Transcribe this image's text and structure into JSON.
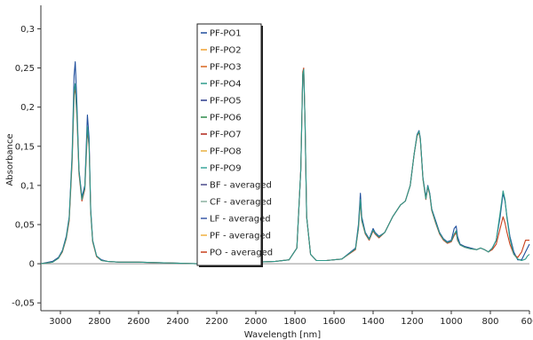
{
  "chart_data": {
    "type": "line",
    "xlabel": "Wavelength [nm]",
    "ylabel": "Absorbance",
    "xlim": [
      3100,
      600
    ],
    "ylim": [
      -0.06,
      0.33
    ],
    "x_ticks": [
      3000,
      2800,
      2600,
      2400,
      2200,
      2000,
      1800,
      1600,
      1400,
      1200,
      1000,
      800,
      600
    ],
    "x_tick_labels": [
      "3000",
      "2800",
      "2600",
      "2400",
      "2200",
      "2000",
      "1800",
      "1600",
      "1400",
      "1200",
      "1000",
      "800",
      "600"
    ],
    "y_ticks": [
      -0.05,
      0,
      0.05,
      0.1,
      0.15,
      0.2,
      0.25,
      0.3
    ],
    "y_tick_labels": [
      "-0,05",
      "0",
      "0,05",
      "0,1",
      "0,15",
      "0,2",
      "0,25",
      "0,3"
    ],
    "grid": false,
    "legend_placement": "top-center",
    "series": [
      {
        "name": "PF-PO1",
        "color": "#1f4e9c",
        "highlight": true
      },
      {
        "name": "PF-PO2",
        "color": "#f0a030"
      },
      {
        "name": "PF-PO3",
        "color": "#d9641e"
      },
      {
        "name": "PF-PO4",
        "color": "#2e9a8a"
      },
      {
        "name": "PF-PO5",
        "color": "#2a3a8c"
      },
      {
        "name": "PF-PO6",
        "color": "#2e8a4a"
      },
      {
        "name": "PF-PO7",
        "color": "#b02418"
      },
      {
        "name": "PF-PO8",
        "color": "#e8b040"
      },
      {
        "name": "PF-PO9",
        "color": "#3aa69a"
      },
      {
        "name": "BF  - averaged",
        "color": "#4a4a8a"
      },
      {
        "name": "CF  - averaged",
        "color": "#8ab0a0"
      },
      {
        "name": "LF  - averaged",
        "color": "#3a5aa8"
      },
      {
        "name": "PF  - averaged",
        "color": "#f0b040"
      },
      {
        "name": "PO  - averaged",
        "color": "#c8401c"
      }
    ],
    "spectra": [
      {
        "name": "PF-PO1",
        "color": "#1f4e9c",
        "x": [
          3100,
          3040,
          3010,
          2990,
          2970,
          2955,
          2940,
          2930,
          2924,
          2915,
          2905,
          2890,
          2875,
          2862,
          2853,
          2845,
          2835,
          2815,
          2790,
          2760,
          2700,
          2600,
          2450,
          2300,
          2150,
          2000,
          1900,
          1830,
          1790,
          1770,
          1760,
          1755,
          1748,
          1740,
          1720,
          1690,
          1640,
          1560,
          1490,
          1475,
          1465,
          1458,
          1440,
          1420,
          1400,
          1390,
          1370,
          1340,
          1300,
          1260,
          1235,
          1210,
          1190,
          1175,
          1165,
          1158,
          1145,
          1130,
          1120,
          1110,
          1100,
          1080,
          1060,
          1040,
          1020,
          1000,
          985,
          975,
          968,
          955,
          930,
          900,
          870,
          850,
          830,
          810,
          790,
          770,
          750,
          735,
          725,
          715,
          700,
          680,
          660,
          640,
          620,
          610,
          600
        ],
        "y": [
          0.0,
          0.003,
          0.008,
          0.017,
          0.035,
          0.06,
          0.14,
          0.24,
          0.258,
          0.2,
          0.12,
          0.085,
          0.1,
          0.19,
          0.16,
          0.07,
          0.03,
          0.01,
          0.005,
          0.003,
          0.002,
          0.002,
          0.001,
          0.0,
          0.001,
          0.002,
          0.003,
          0.005,
          0.02,
          0.12,
          0.24,
          0.245,
          0.18,
          0.06,
          0.012,
          0.004,
          0.004,
          0.006,
          0.02,
          0.05,
          0.09,
          0.06,
          0.04,
          0.032,
          0.045,
          0.04,
          0.035,
          0.04,
          0.06,
          0.075,
          0.08,
          0.1,
          0.14,
          0.165,
          0.17,
          0.16,
          0.11,
          0.085,
          0.1,
          0.09,
          0.07,
          0.055,
          0.04,
          0.032,
          0.028,
          0.03,
          0.045,
          0.048,
          0.035,
          0.025,
          0.022,
          0.02,
          0.018,
          0.02,
          0.018,
          0.015,
          0.02,
          0.03,
          0.06,
          0.09,
          0.08,
          0.06,
          0.035,
          0.015,
          0.005,
          0.005,
          0.015,
          0.02,
          0.025
        ]
      },
      {
        "name": "PO  - averaged",
        "color": "#c8401c",
        "x": [
          3100,
          3040,
          3010,
          2990,
          2970,
          2955,
          2940,
          2930,
          2924,
          2915,
          2905,
          2890,
          2875,
          2862,
          2853,
          2845,
          2835,
          2815,
          2790,
          2760,
          2700,
          2600,
          2450,
          2300,
          2150,
          2000,
          1900,
          1830,
          1790,
          1770,
          1760,
          1755,
          1748,
          1740,
          1720,
          1690,
          1640,
          1560,
          1490,
          1475,
          1465,
          1458,
          1440,
          1420,
          1400,
          1390,
          1370,
          1340,
          1300,
          1260,
          1235,
          1210,
          1190,
          1175,
          1165,
          1158,
          1145,
          1130,
          1120,
          1110,
          1100,
          1080,
          1060,
          1040,
          1020,
          1000,
          985,
          975,
          968,
          955,
          930,
          900,
          870,
          850,
          830,
          810,
          790,
          770,
          750,
          735,
          725,
          715,
          700,
          680,
          660,
          640,
          620,
          610,
          600
        ],
        "y": [
          0.0,
          0.002,
          0.007,
          0.015,
          0.032,
          0.055,
          0.13,
          0.215,
          0.225,
          0.185,
          0.115,
          0.08,
          0.095,
          0.17,
          0.15,
          0.065,
          0.028,
          0.009,
          0.004,
          0.003,
          0.002,
          0.002,
          0.001,
          0.0,
          0.001,
          0.002,
          0.003,
          0.005,
          0.02,
          0.12,
          0.245,
          0.25,
          0.18,
          0.06,
          0.012,
          0.004,
          0.004,
          0.006,
          0.018,
          0.045,
          0.08,
          0.055,
          0.038,
          0.03,
          0.042,
          0.038,
          0.033,
          0.04,
          0.06,
          0.075,
          0.08,
          0.1,
          0.14,
          0.163,
          0.168,
          0.158,
          0.108,
          0.082,
          0.098,
          0.088,
          0.068,
          0.052,
          0.038,
          0.03,
          0.026,
          0.028,
          0.036,
          0.04,
          0.03,
          0.024,
          0.021,
          0.019,
          0.018,
          0.02,
          0.018,
          0.015,
          0.018,
          0.025,
          0.045,
          0.06,
          0.052,
          0.04,
          0.025,
          0.012,
          0.008,
          0.015,
          0.03,
          0.03,
          0.03
        ]
      },
      {
        "name": "PF-PO4",
        "color": "#2e9a8a",
        "x": [
          3100,
          3040,
          3010,
          2990,
          2970,
          2955,
          2940,
          2930,
          2924,
          2915,
          2905,
          2890,
          2875,
          2862,
          2853,
          2845,
          2835,
          2815,
          2790,
          2760,
          2700,
          2600,
          2450,
          2300,
          2150,
          2000,
          1900,
          1830,
          1790,
          1770,
          1760,
          1755,
          1748,
          1740,
          1720,
          1690,
          1640,
          1560,
          1490,
          1475,
          1465,
          1458,
          1440,
          1420,
          1400,
          1390,
          1370,
          1340,
          1300,
          1260,
          1235,
          1210,
          1190,
          1175,
          1165,
          1158,
          1145,
          1130,
          1120,
          1110,
          1100,
          1080,
          1060,
          1040,
          1020,
          1000,
          985,
          975,
          968,
          955,
          930,
          900,
          870,
          850,
          830,
          810,
          790,
          770,
          750,
          735,
          725,
          715,
          700,
          680,
          660,
          640,
          620,
          610,
          600
        ],
        "y": [
          0.0,
          0.002,
          0.007,
          0.016,
          0.033,
          0.058,
          0.135,
          0.22,
          0.23,
          0.19,
          0.118,
          0.082,
          0.097,
          0.175,
          0.152,
          0.067,
          0.029,
          0.01,
          0.004,
          0.003,
          0.002,
          0.002,
          0.001,
          0.0,
          0.001,
          0.002,
          0.003,
          0.005,
          0.02,
          0.12,
          0.242,
          0.248,
          0.18,
          0.06,
          0.012,
          0.004,
          0.004,
          0.006,
          0.019,
          0.046,
          0.082,
          0.056,
          0.039,
          0.031,
          0.043,
          0.039,
          0.034,
          0.04,
          0.06,
          0.075,
          0.08,
          0.1,
          0.14,
          0.164,
          0.169,
          0.159,
          0.109,
          0.083,
          0.099,
          0.089,
          0.069,
          0.053,
          0.039,
          0.031,
          0.027,
          0.029,
          0.038,
          0.042,
          0.031,
          0.024,
          0.021,
          0.019,
          0.018,
          0.02,
          0.018,
          0.015,
          0.02,
          0.03,
          0.065,
          0.093,
          0.082,
          0.058,
          0.032,
          0.012,
          0.006,
          0.004,
          0.006,
          0.01,
          0.012
        ]
      }
    ]
  }
}
